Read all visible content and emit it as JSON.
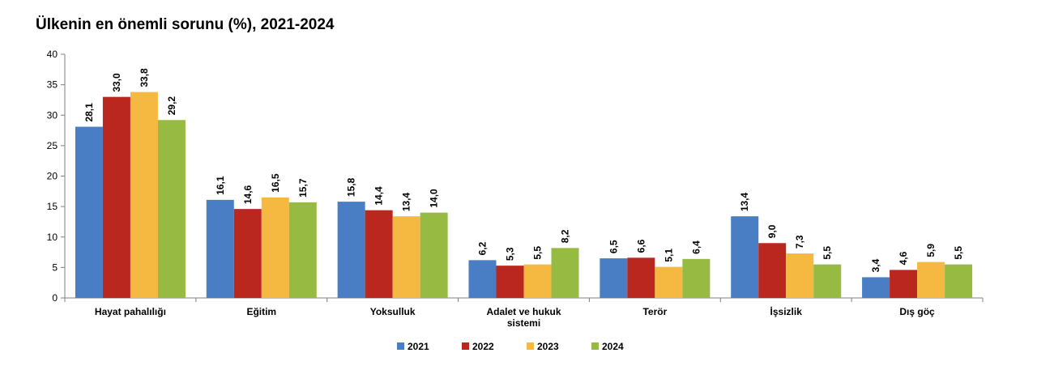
{
  "chart_data": {
    "type": "bar",
    "title": "Ülkenin en önemli sorunu (%), 2021-2024",
    "xlabel": "",
    "ylabel": "",
    "ylim": [
      0,
      40
    ],
    "yticks": [
      0,
      5,
      10,
      15,
      20,
      25,
      30,
      35,
      40
    ],
    "categories": [
      [
        "Hayat pahalılığı"
      ],
      [
        "Eğitim"
      ],
      [
        "Yoksulluk"
      ],
      [
        "Adalet ve hukuk",
        "sistemi"
      ],
      [
        "Terör"
      ],
      [
        "İşsizlik"
      ],
      [
        "Dış göç"
      ]
    ],
    "series": [
      {
        "name": "2021",
        "color": "#4a7ec4",
        "values": [
          28.1,
          16.1,
          15.8,
          6.2,
          6.5,
          13.4,
          3.4
        ],
        "labels": [
          "28,1",
          "16,1",
          "15,8",
          "6,2",
          "6,5",
          "13,4",
          "3,4"
        ]
      },
      {
        "name": "2022",
        "color": "#b9271f",
        "values": [
          33.0,
          14.6,
          14.4,
          5.3,
          6.6,
          9.0,
          4.6
        ],
        "labels": [
          "33,0",
          "14,6",
          "14,4",
          "5,3",
          "6,6",
          "9,0",
          "4,6"
        ]
      },
      {
        "name": "2023",
        "color": "#f5b942",
        "values": [
          33.8,
          16.5,
          13.4,
          5.5,
          5.1,
          7.3,
          5.9
        ],
        "labels": [
          "33,8",
          "16,5",
          "13,4",
          "5,5",
          "5,1",
          "7,3",
          "5,9"
        ]
      },
      {
        "name": "2024",
        "color": "#97bb42",
        "values": [
          29.2,
          15.7,
          14.0,
          8.2,
          6.4,
          5.5,
          5.5
        ],
        "labels": [
          "29,2",
          "15,7",
          "14,0",
          "8,2",
          "6,4",
          "5,5",
          "5,5"
        ]
      }
    ],
    "legend_position": "bottom-center",
    "grid": false
  }
}
